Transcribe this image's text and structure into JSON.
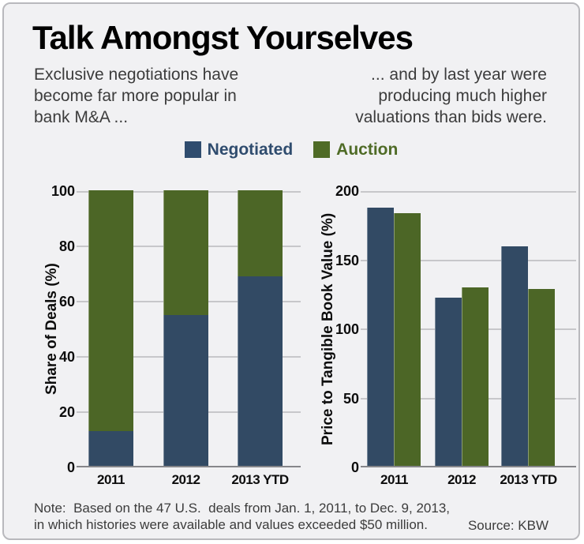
{
  "card": {
    "title": "Talk Amongst Yourselves",
    "subtitle_left": "Exclusive negotiations have\nbecome far more popular in\nbank M&A ...",
    "subtitle_right": "... and by last year were\nproducing much higher\nvaluations than bids were.",
    "note": "Note:  Based on the 47 U.S.  deals from Jan. 1, 2011, to Dec. 9, 2013,\nin which histories were available and values exceeded $50 million.",
    "source": "Source: KBW"
  },
  "legend": {
    "items": [
      {
        "label": "Negotiated",
        "color": "#2F4C6E"
      },
      {
        "label": "Auction",
        "color": "#4F6B26"
      }
    ]
  },
  "colors": {
    "negotiated_bar": "#324A64",
    "auction_bar": "#4C6626",
    "background": "#f1f1f3",
    "gridline": "#c7c7ca",
    "baseline": "#86868a"
  },
  "chart_data": [
    {
      "type": "bar",
      "stacked": true,
      "ylabel": "Share of Deals (%)",
      "categories": [
        "2011",
        "2012",
        "2013 YTD"
      ],
      "series": [
        {
          "name": "Negotiated",
          "values": [
            13,
            55,
            69
          ],
          "color": "#324A64"
        },
        {
          "name": "Auction",
          "values": [
            87,
            45,
            31
          ],
          "color": "#4C6626"
        }
      ],
      "ylim": [
        0,
        100
      ],
      "yticks": [
        0,
        20,
        40,
        60,
        80,
        100
      ],
      "grid": true,
      "legend_position": "top-shared"
    },
    {
      "type": "bar",
      "stacked": false,
      "ylabel": "Price to Tangible Book Value (%)",
      "categories": [
        "2011",
        "2012",
        "2013 YTD"
      ],
      "series": [
        {
          "name": "Negotiated",
          "values": [
            188,
            123,
            160
          ],
          "color": "#324A64"
        },
        {
          "name": "Auction",
          "values": [
            184,
            130,
            129
          ],
          "color": "#4C6626"
        }
      ],
      "ylim": [
        0,
        200
      ],
      "yticks": [
        0,
        50,
        100,
        150,
        200
      ],
      "grid": true,
      "legend_position": "top-shared"
    }
  ]
}
